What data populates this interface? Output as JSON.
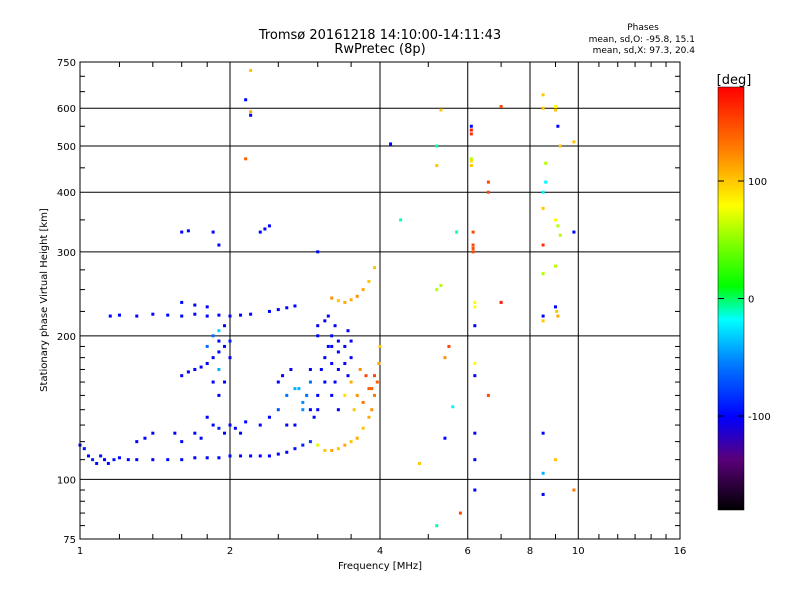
{
  "chart_data": {
    "type": "scatter",
    "title": "Tromsø 20161218 14:10:00-14:11:43",
    "subtitle": "RwPretec (8p)",
    "stats_title": "Phases",
    "stats_line1": "mean, sd,O: -95.8, 15.1",
    "stats_line2": "mean, sd,X:  97.3, 20.4",
    "xlabel": "Frequency [MHz]",
    "ylabel": "Stationary phase Virtual Height [km]",
    "x_scale": "log",
    "y_scale": "log",
    "xlim": [
      1,
      16
    ],
    "ylim": [
      75,
      750
    ],
    "x_ticks": [
      1,
      2,
      4,
      6,
      8,
      10,
      16
    ],
    "y_ticks": [
      75,
      100,
      200,
      300,
      400,
      500,
      600,
      750
    ],
    "grid": true,
    "colorbar": {
      "label": "[deg]",
      "ticks": [
        100,
        0,
        -100
      ],
      "range": [
        -180,
        180
      ],
      "colormap": "rainbow"
    },
    "series": [
      {
        "points": [
          [
            1.0,
            118,
            -100
          ],
          [
            1.02,
            116,
            -95
          ],
          [
            1.04,
            112,
            -100
          ],
          [
            1.06,
            110,
            -90
          ],
          [
            1.08,
            108,
            -100
          ],
          [
            1.1,
            112,
            -95
          ],
          [
            1.12,
            110,
            -100
          ],
          [
            1.14,
            108,
            -100
          ],
          [
            1.17,
            110,
            -95
          ],
          [
            1.2,
            111,
            -100
          ],
          [
            1.25,
            110,
            -100
          ],
          [
            1.3,
            110,
            -100
          ],
          [
            1.4,
            110,
            -100
          ],
          [
            1.5,
            110,
            -100
          ],
          [
            1.6,
            110,
            -100
          ],
          [
            1.7,
            111,
            -100
          ],
          [
            1.8,
            111,
            -100
          ],
          [
            1.9,
            111,
            -100
          ],
          [
            2.0,
            112,
            -100
          ],
          [
            2.1,
            112,
            -100
          ],
          [
            2.2,
            112,
            -100
          ],
          [
            2.3,
            112,
            -100
          ],
          [
            2.4,
            112,
            -100
          ],
          [
            2.5,
            113,
            -100
          ],
          [
            2.6,
            114,
            -100
          ],
          [
            2.7,
            116,
            -95
          ],
          [
            2.8,
            118,
            -90
          ],
          [
            2.9,
            120,
            -80
          ],
          [
            3.0,
            118,
            70
          ],
          [
            3.1,
            115,
            100
          ],
          [
            3.2,
            115,
            110
          ],
          [
            3.3,
            116,
            100
          ],
          [
            3.4,
            118,
            110
          ],
          [
            3.5,
            120,
            100
          ],
          [
            3.6,
            122,
            110
          ],
          [
            3.7,
            128,
            100
          ],
          [
            3.8,
            135,
            110
          ],
          [
            3.85,
            140,
            120
          ],
          [
            3.9,
            150,
            130
          ],
          [
            3.95,
            160,
            140
          ],
          [
            3.98,
            175,
            110
          ],
          [
            4.0,
            190,
            100
          ],
          [
            3.6,
            150,
            120
          ],
          [
            3.7,
            145,
            130
          ],
          [
            3.8,
            155,
            140
          ],
          [
            3.75,
            165,
            150
          ],
          [
            3.5,
            160,
            110
          ],
          [
            3.55,
            140,
            100
          ],
          [
            3.4,
            150,
            90
          ],
          [
            3.65,
            170,
            120
          ],
          [
            3.9,
            165,
            150
          ],
          [
            3.85,
            155,
            140
          ],
          [
            1.15,
            220,
            -100
          ],
          [
            1.2,
            221,
            -100
          ],
          [
            1.3,
            220,
            -100
          ],
          [
            1.4,
            222,
            -100
          ],
          [
            1.5,
            221,
            -100
          ],
          [
            1.6,
            220,
            -100
          ],
          [
            1.7,
            222,
            -100
          ],
          [
            1.8,
            220,
            -100
          ],
          [
            1.9,
            221,
            -100
          ],
          [
            2.0,
            220,
            -100
          ],
          [
            2.1,
            221,
            -100
          ],
          [
            2.2,
            222,
            -100
          ],
          [
            2.4,
            225,
            -100
          ],
          [
            2.5,
            227,
            -100
          ],
          [
            2.6,
            229,
            -100
          ],
          [
            2.7,
            231,
            -100
          ],
          [
            1.6,
            235,
            -100
          ],
          [
            1.7,
            232,
            -100
          ],
          [
            1.8,
            230,
            -100
          ],
          [
            1.6,
            165,
            -100
          ],
          [
            1.65,
            168,
            -100
          ],
          [
            1.7,
            170,
            -100
          ],
          [
            1.75,
            172,
            -100
          ],
          [
            1.8,
            175,
            -100
          ],
          [
            1.85,
            180,
            -100
          ],
          [
            1.9,
            185,
            -100
          ],
          [
            1.95,
            190,
            -100
          ],
          [
            2.0,
            195,
            -90
          ],
          [
            1.85,
            200,
            -60
          ],
          [
            1.9,
            205,
            -30
          ],
          [
            1.95,
            210,
            -100
          ],
          [
            2.0,
            180,
            -100
          ],
          [
            1.8,
            190,
            -60
          ],
          [
            1.9,
            170,
            -40
          ],
          [
            1.95,
            160,
            -100
          ],
          [
            1.9,
            195,
            -100
          ],
          [
            1.85,
            160,
            -100
          ],
          [
            1.9,
            150,
            -100
          ],
          [
            1.8,
            135,
            -100
          ],
          [
            1.85,
            130,
            -100
          ],
          [
            1.9,
            128,
            -90
          ],
          [
            1.95,
            125,
            -100
          ],
          [
            2.0,
            130,
            -100
          ],
          [
            2.05,
            128,
            -100
          ],
          [
            2.1,
            125,
            -100
          ],
          [
            2.15,
            132,
            -100
          ],
          [
            1.55,
            125,
            -100
          ],
          [
            1.6,
            120,
            -100
          ],
          [
            1.7,
            125,
            -100
          ],
          [
            1.75,
            122,
            -100
          ],
          [
            1.3,
            120,
            -100
          ],
          [
            1.35,
            122,
            -100
          ],
          [
            1.4,
            125,
            -100
          ],
          [
            2.3,
            130,
            -100
          ],
          [
            2.4,
            135,
            -100
          ],
          [
            2.5,
            140,
            -70
          ],
          [
            2.6,
            150,
            -60
          ],
          [
            2.7,
            155,
            -40
          ],
          [
            2.8,
            145,
            -50
          ],
          [
            2.9,
            160,
            -60
          ],
          [
            2.5,
            160,
            -100
          ],
          [
            2.6,
            130,
            -100
          ],
          [
            2.55,
            165,
            -100
          ],
          [
            2.65,
            170,
            -100
          ],
          [
            2.7,
            130,
            -100
          ],
          [
            2.8,
            140,
            -50
          ],
          [
            2.75,
            155,
            -40
          ],
          [
            2.85,
            150,
            -60
          ],
          [
            2.9,
            140,
            -100
          ],
          [
            2.95,
            135,
            -100
          ],
          [
            2.9,
            170,
            -100
          ],
          [
            3.0,
            150,
            -100
          ],
          [
            3.05,
            170,
            -100
          ],
          [
            3.1,
            180,
            -100
          ],
          [
            3.15,
            190,
            -100
          ],
          [
            3.2,
            200,
            -100
          ],
          [
            3.25,
            210,
            -100
          ],
          [
            3.3,
            195,
            -100
          ],
          [
            3.0,
            200,
            -100
          ],
          [
            3.1,
            215,
            -100
          ],
          [
            3.2,
            190,
            -100
          ],
          [
            3.3,
            170,
            -100
          ],
          [
            3.1,
            160,
            -100
          ],
          [
            3.2,
            150,
            -100
          ],
          [
            3.0,
            140,
            -100
          ],
          [
            3.3,
            140,
            -100
          ],
          [
            3.25,
            160,
            -100
          ],
          [
            3.2,
            175,
            -100
          ],
          [
            3.15,
            220,
            -100
          ],
          [
            3.0,
            210,
            -100
          ],
          [
            3.3,
            185,
            -100
          ],
          [
            3.4,
            175,
            -100
          ],
          [
            3.45,
            165,
            -100
          ],
          [
            3.5,
            180,
            -100
          ],
          [
            3.4,
            190,
            -100
          ],
          [
            3.5,
            195,
            -100
          ],
          [
            3.45,
            205,
            -100
          ],
          [
            1.6,
            330,
            -100
          ],
          [
            1.65,
            332,
            -100
          ],
          [
            1.85,
            330,
            -100
          ],
          [
            1.9,
            310,
            -100
          ],
          [
            2.3,
            330,
            -100
          ],
          [
            2.4,
            340,
            -100
          ],
          [
            2.35,
            335,
            -100
          ],
          [
            2.15,
            625,
            -100
          ],
          [
            3.0,
            300,
            -100
          ],
          [
            4.2,
            505,
            -100
          ],
          [
            3.2,
            240,
            120
          ],
          [
            3.3,
            237,
            100
          ],
          [
            3.4,
            235,
            110
          ],
          [
            3.5,
            238,
            110
          ],
          [
            3.6,
            242,
            120
          ],
          [
            3.7,
            250,
            110
          ],
          [
            3.8,
            260,
            100
          ],
          [
            3.9,
            278,
            100
          ],
          [
            4.4,
            350,
            -10
          ],
          [
            5.2,
            500,
            -10
          ],
          [
            5.3,
            595,
            100
          ],
          [
            5.2,
            455,
            100
          ],
          [
            5.2,
            80,
            -10
          ],
          [
            4.8,
            108,
            100
          ],
          [
            5.3,
            255,
            60
          ],
          [
            5.2,
            250,
            60
          ],
          [
            5.5,
            190,
            150
          ],
          [
            5.4,
            180,
            120
          ],
          [
            5.6,
            142,
            -20
          ],
          [
            5.4,
            122,
            -100
          ],
          [
            5.7,
            330,
            -10
          ],
          [
            6.1,
            550,
            -100
          ],
          [
            6.1,
            540,
            170
          ],
          [
            6.1,
            530,
            160
          ],
          [
            6.1,
            470,
            60
          ],
          [
            6.1,
            465,
            90
          ],
          [
            6.1,
            455,
            100
          ],
          [
            6.15,
            330,
            150
          ],
          [
            6.15,
            310,
            150
          ],
          [
            6.15,
            305,
            150
          ],
          [
            6.15,
            300,
            150
          ],
          [
            6.2,
            235,
            80
          ],
          [
            6.2,
            230,
            80
          ],
          [
            6.2,
            210,
            -100
          ],
          [
            6.2,
            175,
            80
          ],
          [
            6.2,
            165,
            -100
          ],
          [
            6.2,
            125,
            -100
          ],
          [
            6.2,
            110,
            -100
          ],
          [
            6.2,
            95,
            -100
          ],
          [
            6.6,
            420,
            150
          ],
          [
            6.6,
            400,
            150
          ],
          [
            7.0,
            605,
            150
          ],
          [
            7.0,
            235,
            170
          ],
          [
            6.6,
            150,
            150
          ],
          [
            5.8,
            85,
            150
          ],
          [
            8.5,
            640,
            100
          ],
          [
            8.5,
            600,
            100
          ],
          [
            8.6,
            460,
            60
          ],
          [
            8.6,
            420,
            -20
          ],
          [
            8.5,
            400,
            -20
          ],
          [
            8.5,
            370,
            100
          ],
          [
            8.5,
            310,
            160
          ],
          [
            8.5,
            270,
            60
          ],
          [
            8.5,
            220,
            -100
          ],
          [
            8.5,
            215,
            100
          ],
          [
            8.5,
            125,
            -100
          ],
          [
            8.5,
            103,
            -40
          ],
          [
            8.5,
            93,
            -100
          ],
          [
            9.0,
            605,
            80
          ],
          [
            9.0,
            595,
            100
          ],
          [
            9.1,
            550,
            -100
          ],
          [
            9.2,
            500,
            100
          ],
          [
            9.0,
            350,
            80
          ],
          [
            9.1,
            340,
            60
          ],
          [
            9.2,
            325,
            60
          ],
          [
            9.0,
            280,
            60
          ],
          [
            9.0,
            230,
            -100
          ],
          [
            9.05,
            225,
            100
          ],
          [
            9.1,
            220,
            110
          ],
          [
            9.0,
            110,
            100
          ],
          [
            9.8,
            510,
            100
          ],
          [
            9.8,
            330,
            -100
          ],
          [
            9.8,
            95,
            130
          ],
          [
            2.2,
            590,
            110
          ],
          [
            2.2,
            580,
            -100
          ],
          [
            2.15,
            470,
            140
          ],
          [
            2.2,
            720,
            100
          ]
        ]
      }
    ]
  }
}
